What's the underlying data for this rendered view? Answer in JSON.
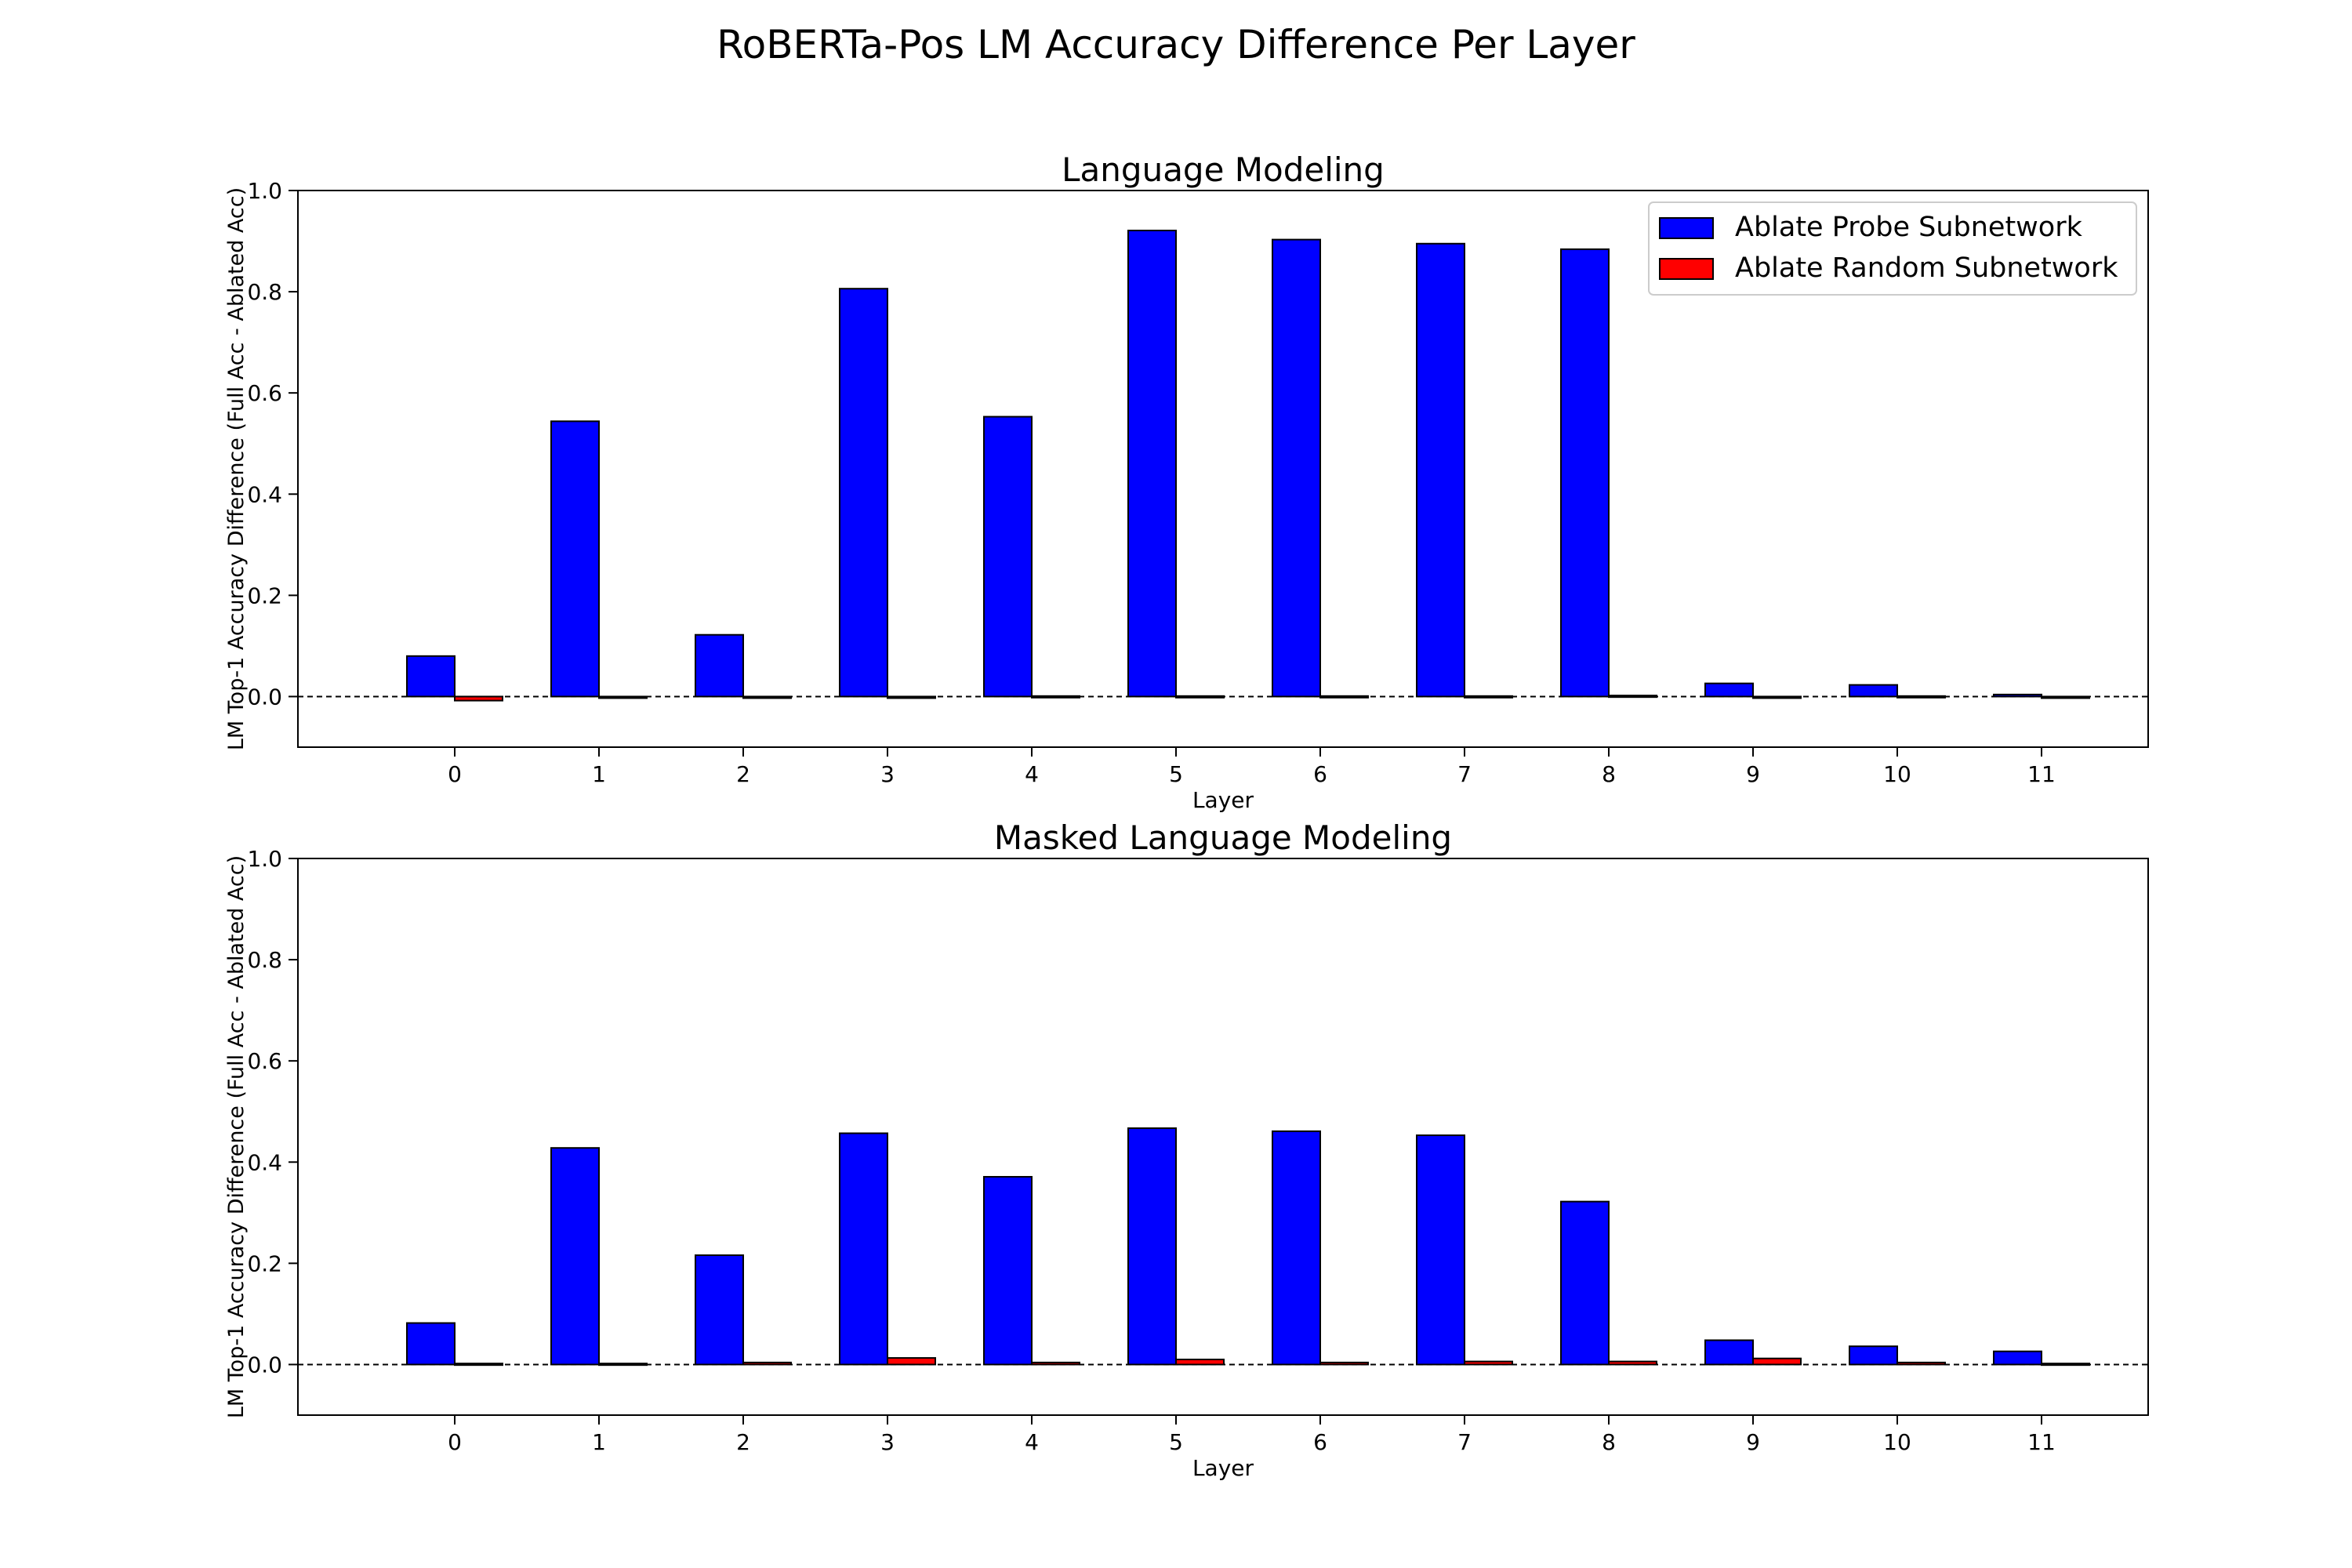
{
  "figure": {
    "title": "RoBERTa-Pos LM Accuracy Difference Per Layer"
  },
  "colors": {
    "probe": "#0000ff",
    "random": "#ff0000",
    "edge": "#000000",
    "baseline": "#000000"
  },
  "chart_data": [
    {
      "type": "bar",
      "title": "Language Modeling",
      "xlabel": "Layer",
      "ylabel": "LM Top-1 Accuracy Difference (Full Acc - Ablated Acc)",
      "ylim": [
        -0.1,
        1.0
      ],
      "yticks": [
        "0.0",
        "0.2",
        "0.4",
        "0.6",
        "0.8",
        "1.0"
      ],
      "categories": [
        "0",
        "1",
        "2",
        "3",
        "4",
        "5",
        "6",
        "7",
        "8",
        "9",
        "10",
        "11"
      ],
      "legend": {
        "position": "top-right",
        "entries": [
          "Ablate Probe Subnetwork",
          "Ablate Random Subnetwork"
        ]
      },
      "baseline": 0.0,
      "series": [
        {
          "name": "Ablate Probe Subnetwork",
          "values": [
            0.08,
            0.544,
            0.122,
            0.806,
            0.553,
            0.921,
            0.903,
            0.895,
            0.884,
            0.026,
            0.023,
            0.004
          ]
        },
        {
          "name": "Ablate Random Subnetwork",
          "values": [
            -0.008,
            -0.003,
            -0.003,
            -0.003,
            0.001,
            0.001,
            0.001,
            0.001,
            0.002,
            -0.002,
            0.001,
            -0.001
          ]
        }
      ]
    },
    {
      "type": "bar",
      "title": "Masked Language Modeling",
      "xlabel": "Layer",
      "ylabel": "LM Top-1 Accuracy Difference (Full Acc - Ablated Acc)",
      "ylim": [
        -0.1,
        1.0
      ],
      "yticks": [
        "0.0",
        "0.2",
        "0.4",
        "0.6",
        "0.8",
        "1.0"
      ],
      "categories": [
        "0",
        "1",
        "2",
        "3",
        "4",
        "5",
        "6",
        "7",
        "8",
        "9",
        "10",
        "11"
      ],
      "baseline": 0.0,
      "series": [
        {
          "name": "Ablate Probe Subnetwork",
          "values": [
            0.082,
            0.428,
            0.216,
            0.457,
            0.371,
            0.467,
            0.461,
            0.453,
            0.322,
            0.048,
            0.036,
            0.026
          ]
        },
        {
          "name": "Ablate Random Subnetwork",
          "values": [
            0.002,
            0.002,
            0.004,
            0.013,
            0.004,
            0.01,
            0.004,
            0.006,
            0.006,
            0.012,
            0.004,
            0.002
          ]
        }
      ]
    }
  ]
}
